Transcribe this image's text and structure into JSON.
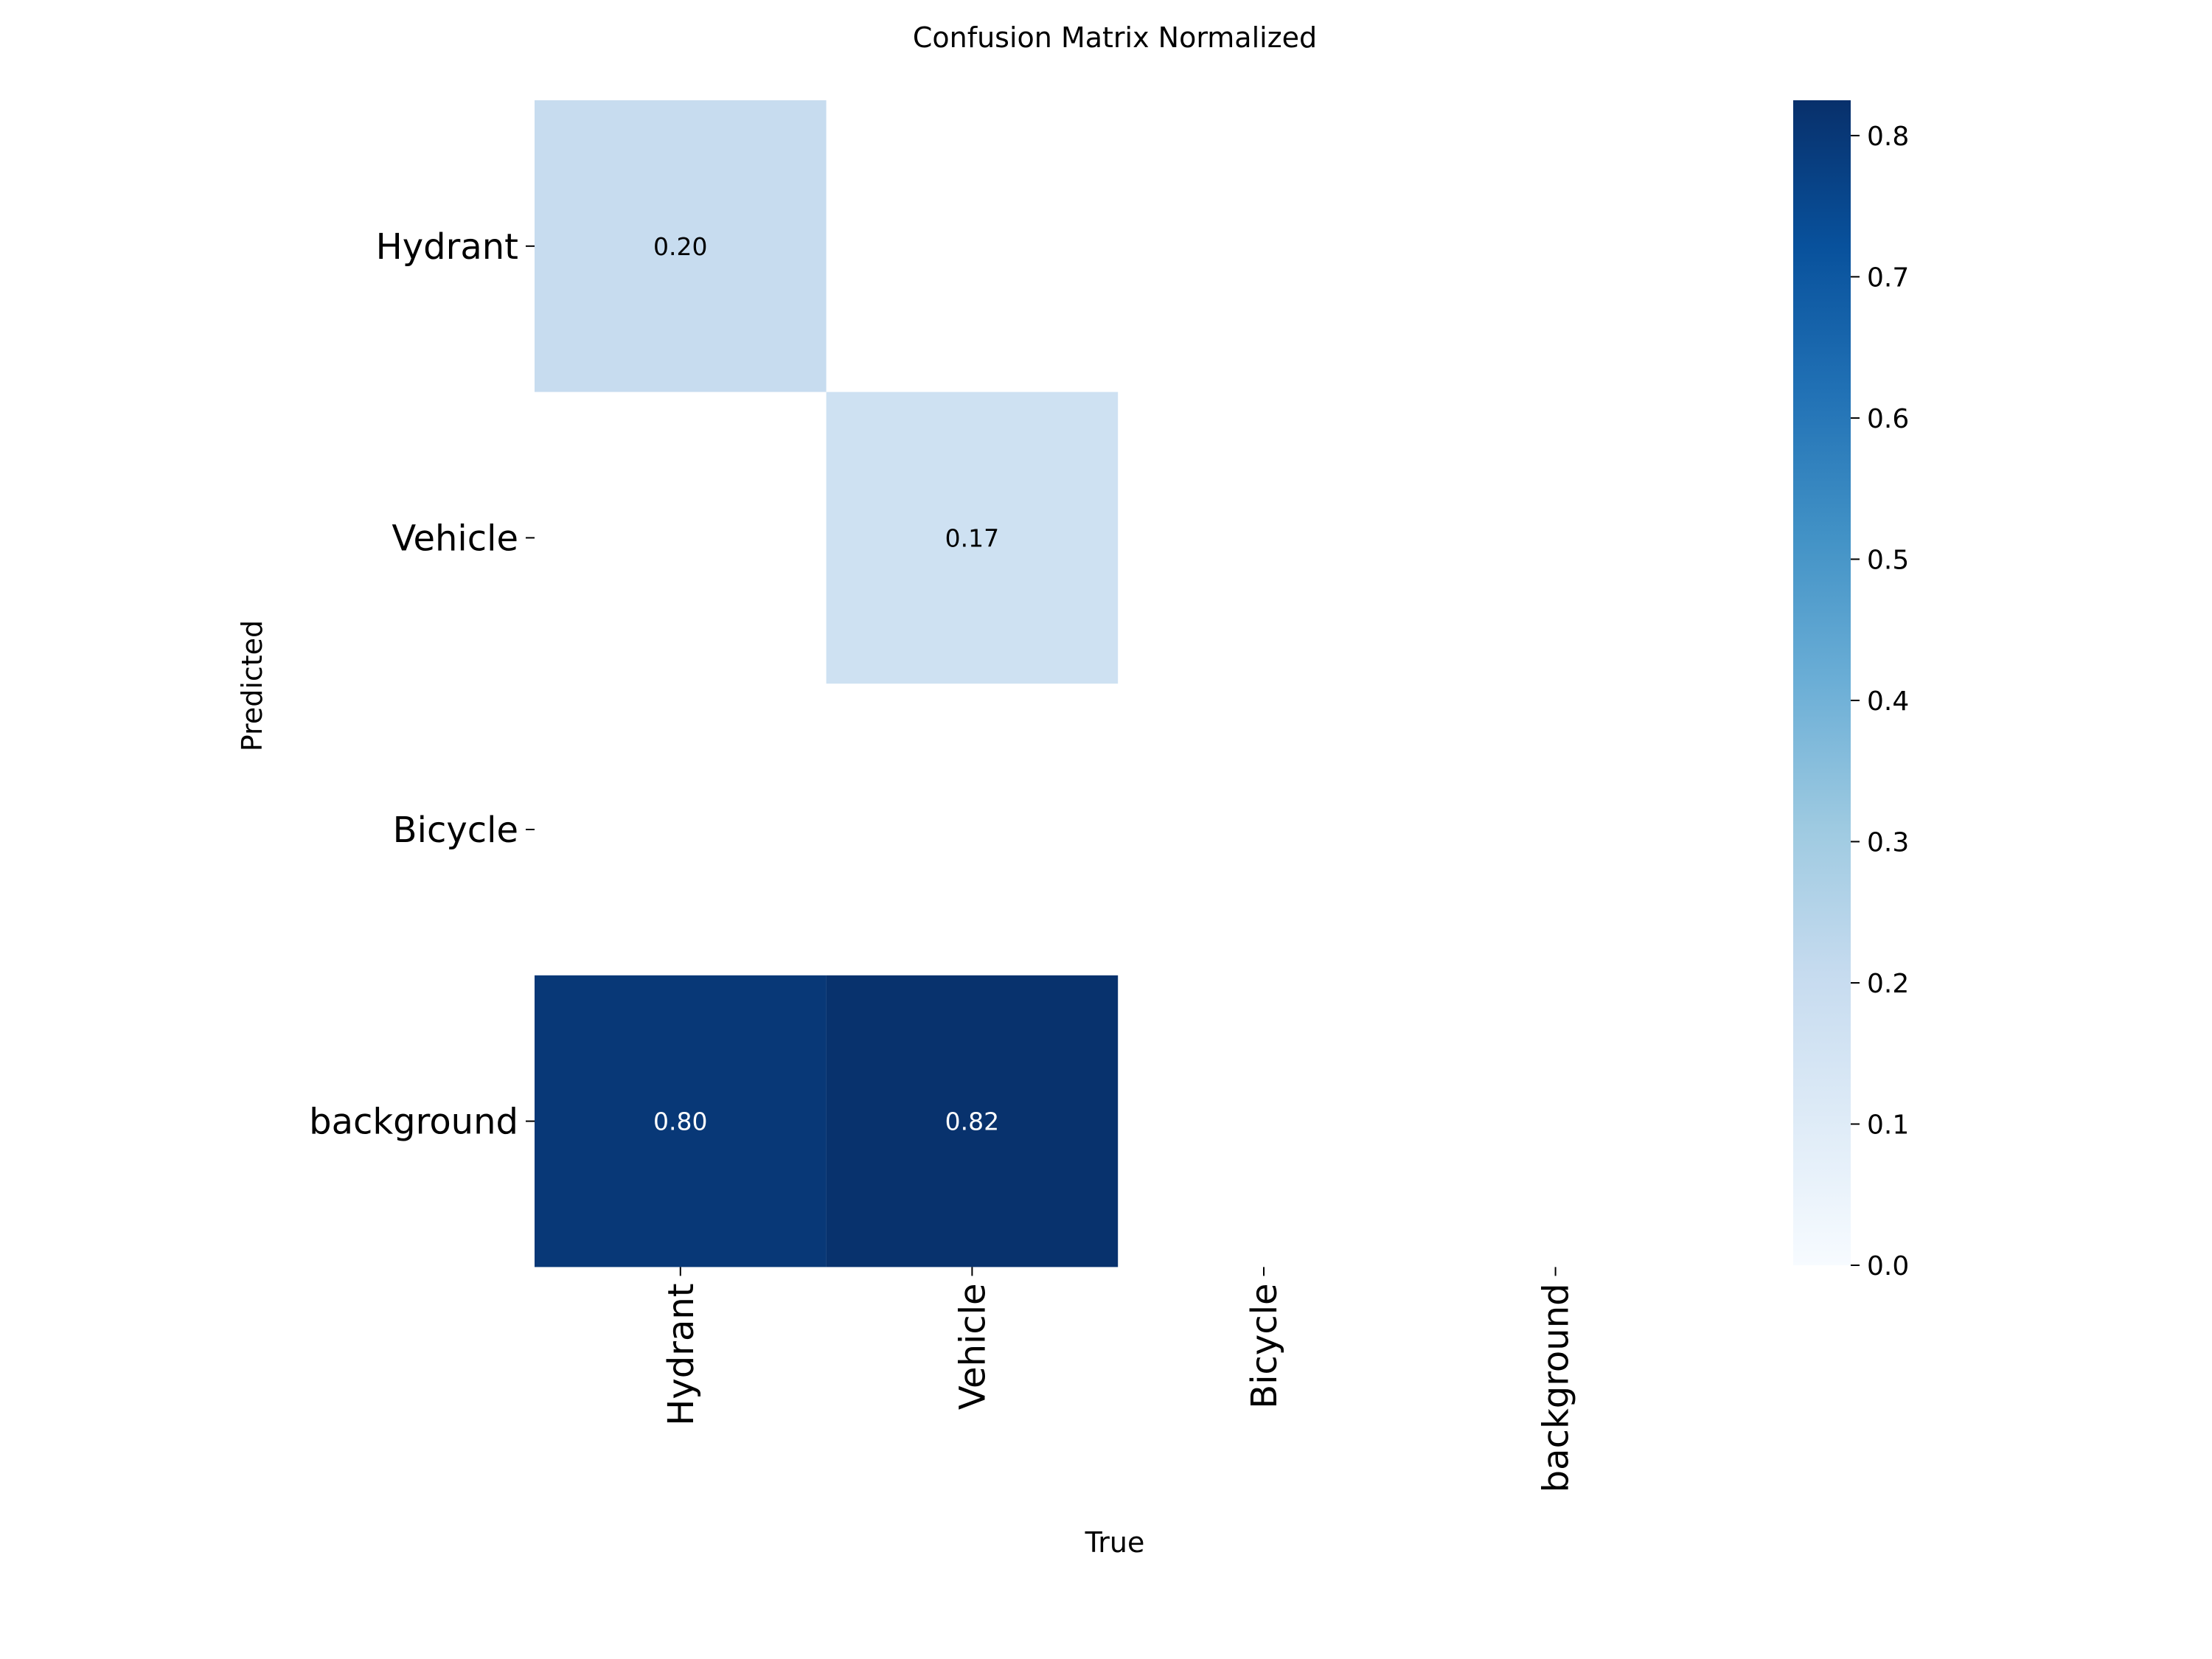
{
  "chart_data": {
    "type": "heatmap",
    "title": "Confusion Matrix Normalized",
    "xlabel": "True",
    "ylabel": "Predicted",
    "x_categories": [
      "Hydrant",
      "Vehicle",
      "Bicycle",
      "background"
    ],
    "y_categories": [
      "Hydrant",
      "Vehicle",
      "Bicycle",
      "background"
    ],
    "cells": [
      {
        "row": 0,
        "col": 0,
        "value": 0.2,
        "label": "0.20"
      },
      {
        "row": 1,
        "col": 1,
        "value": 0.17,
        "label": "0.17"
      },
      {
        "row": 3,
        "col": 0,
        "value": 0.8,
        "label": "0.80"
      },
      {
        "row": 3,
        "col": 1,
        "value": 0.82,
        "label": "0.82"
      }
    ],
    "colorscale": "Blues",
    "vmin": 0.0,
    "vmax": 0.825,
    "colorbar_ticks": [
      "0.0",
      "0.1",
      "0.2",
      "0.3",
      "0.4",
      "0.5",
      "0.6",
      "0.7",
      "0.8"
    ],
    "grid": false
  }
}
